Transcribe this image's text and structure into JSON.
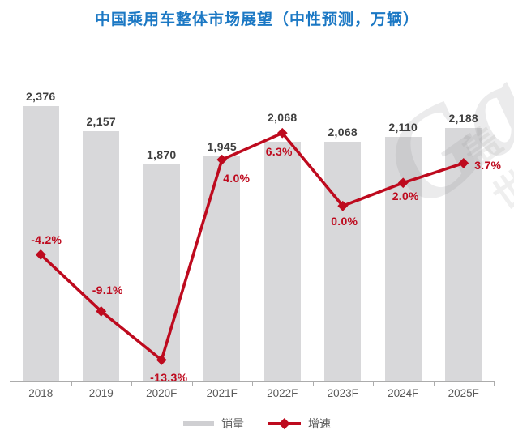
{
  "title": "中国乘用车整体市场展望（中性预测，万辆）",
  "legend": {
    "sales": "销量",
    "growth": "增速"
  },
  "watermark": {
    "text_latin": "Gas",
    "text_cjk": "盖世"
  },
  "colors": {
    "title": "#1B78C4",
    "bar": "#D8D8DA",
    "line": "#BE0A1E",
    "value_label": "#3F3F3F",
    "axis_label": "#595959",
    "axis_line": "#ACACAC"
  },
  "chart_data": {
    "type": "bar+line",
    "title": "中国乘用车整体市场展望（中性预测，万辆）",
    "categories": [
      "2018",
      "2019",
      "2020F",
      "2021F",
      "2022F",
      "2023F",
      "2024F",
      "2025F"
    ],
    "series": [
      {
        "name": "销量",
        "type": "bar",
        "values": [
          2376,
          2157,
          1870,
          1945,
          2068,
          2068,
          2110,
          2188
        ],
        "labels": [
          "2,376",
          "2,157",
          "1,870",
          "1,945",
          "2,068",
          "2,068",
          "2,110",
          "2,188"
        ]
      },
      {
        "name": "增速",
        "type": "line",
        "unit": "%",
        "values": [
          -4.2,
          -9.1,
          -13.3,
          4.0,
          6.3,
          0.0,
          2.0,
          3.7
        ],
        "labels": [
          "-4.2%",
          "-9.1%",
          "-13.3%",
          "4.0%",
          "6.3%",
          "0.0%",
          "2.0%",
          "3.7%"
        ]
      }
    ],
    "bar_axis_range": [
      0,
      2500
    ],
    "line_axis_range": [
      -15,
      8
    ],
    "grid": false,
    "legend_position": "bottom",
    "data_labels": true
  }
}
